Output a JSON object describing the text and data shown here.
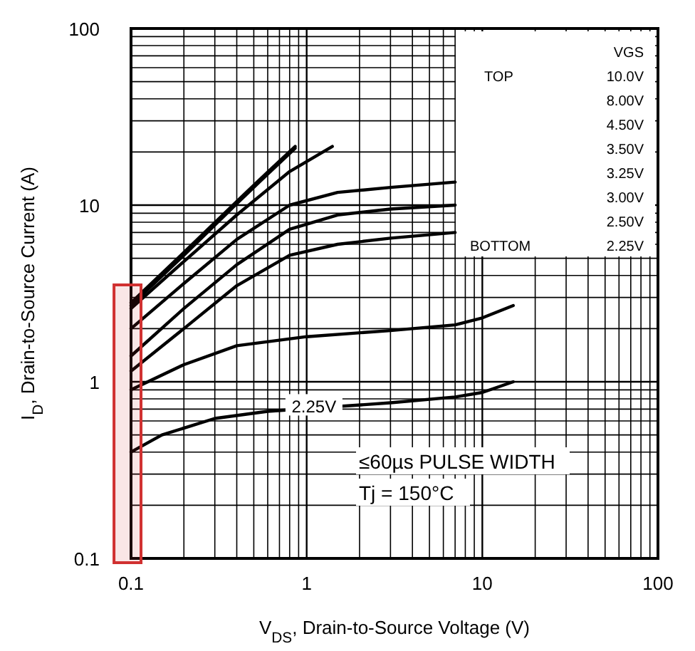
{
  "chart_data": {
    "type": "line",
    "log": "xy",
    "xlabel": "V$_{DS}$, Drain-to-Source Voltage (V)",
    "ylabel": "I$_{D}$, Drain-to-Source Current (A)",
    "legend_title": "VGS",
    "grid": true,
    "marker": "none",
    "line_style": "solid",
    "xlim": [
      0.1,
      100
    ],
    "ylim": [
      0.1,
      100
    ],
    "xticks": [
      0.1,
      {
        "value": 0.2,
        "label": null
      },
      {
        "value": 0.3,
        "label": null
      },
      {
        "value": 0.4,
        "label": null
      },
      {
        "value": 0.5,
        "label": null
      },
      {
        "value": 0.6,
        "label": null
      },
      {
        "value": 0.7,
        "label": null
      },
      {
        "value": 0.8,
        "label": null
      },
      {
        "value": 0.9,
        "label": null
      },
      1,
      {
        "value": 2,
        "label": null
      },
      {
        "value": 3,
        "label": null
      },
      {
        "value": 4,
        "label": null
      },
      {
        "value": 5,
        "label": null
      },
      {
        "value": 6,
        "label": null
      },
      {
        "value": 7,
        "label": null
      },
      {
        "value": 8,
        "label": null
      },
      {
        "value": 9,
        "label": null
      },
      10,
      {
        "value": 20,
        "label": null
      },
      {
        "value": 30,
        "label": null
      },
      {
        "value": 40,
        "label": null
      },
      {
        "value": 50,
        "label": null
      },
      {
        "value": 60,
        "label": null
      },
      {
        "value": 70,
        "label": null
      },
      {
        "value": 80,
        "label": null
      },
      {
        "value": 90,
        "label": null
      },
      100
    ],
    "yticks": [
      0.1,
      {
        "value": 0.2,
        "label": null
      },
      {
        "value": 0.3,
        "label": null
      },
      {
        "value": 0.4,
        "label": null
      },
      {
        "value": 0.5,
        "label": null
      },
      {
        "value": 0.6,
        "label": null
      },
      {
        "value": 0.7,
        "label": null
      },
      {
        "value": 0.8,
        "label": null
      },
      {
        "value": 0.9,
        "label": null
      },
      1,
      {
        "value": 2,
        "label": null
      },
      {
        "value": 3,
        "label": null
      },
      {
        "value": 4,
        "label": null
      },
      {
        "value": 5,
        "label": null
      },
      {
        "value": 6,
        "label": null
      },
      {
        "value": 7,
        "label": null
      },
      {
        "value": 8,
        "label": null
      },
      {
        "value": 9,
        "label": null
      },
      10,
      {
        "value": 20,
        "label": null
      },
      {
        "value": 30,
        "label": null
      },
      {
        "value": 40,
        "label": null
      },
      {
        "value": 50,
        "label": null
      },
      {
        "value": 60,
        "label": null
      },
      {
        "value": 70,
        "label": null
      },
      {
        "value": 80,
        "label": null
      },
      {
        "value": 90,
        "label": null
      },
      100
    ],
    "series": [
      {
        "color": "#000000",
        "x": [
          0.1,
          0.2,
          0.4,
          0.6,
          0.86
        ],
        "values": [
          2.8,
          5.4,
          10.5,
          15.4,
          21.5
        ]
      },
      {
        "color": "#000000",
        "x": [
          0.1,
          0.2,
          0.4,
          0.6,
          0.86
        ],
        "values": [
          2.7,
          5.2,
          10.2,
          15,
          21
        ]
      },
      {
        "color": "#000000",
        "x": [
          0.1,
          0.2,
          0.4,
          0.8,
          1.4
        ],
        "values": [
          2.6,
          4.8,
          8.8,
          15.5,
          21.5
        ]
      },
      {
        "color": "#000000",
        "x": [
          0.1,
          0.2,
          0.4,
          0.8,
          1.5,
          3,
          7
        ],
        "values": [
          2,
          3.6,
          6.4,
          10,
          11.8,
          12.6,
          13.5
        ]
      },
      {
        "color": "#000000",
        "x": [
          0.1,
          0.2,
          0.4,
          0.8,
          1.5,
          3,
          7
        ],
        "values": [
          1.4,
          2.6,
          4.6,
          7.3,
          8.8,
          9.5,
          10
        ]
      },
      {
        "color": "#000000",
        "x": [
          0.1,
          0.2,
          0.4,
          0.8,
          1.5,
          3,
          7
        ],
        "values": [
          1.15,
          2,
          3.5,
          5.2,
          6,
          6.5,
          7
        ]
      },
      {
        "color": "#000000",
        "x": [
          0.1,
          0.2,
          0.4,
          1,
          3,
          7,
          10,
          15
        ],
        "values": [
          0.9,
          1.25,
          1.6,
          1.8,
          1.95,
          2.1,
          2.3,
          2.7
        ]
      },
      {
        "color": "#000000",
        "x": [
          0.1,
          0.15,
          0.3,
          0.6,
          3,
          7,
          10,
          15
        ],
        "values": [
          0.4,
          0.5,
          0.62,
          0.68,
          0.76,
          0.82,
          0.87,
          1
        ]
      }
    ],
    "bands": [
      {
        "axis": "x",
        "from": 0.08,
        "to": 0.114,
        "color": "#d03030"
      }
    ],
    "annotations": [
      {
        "text": "2.25V",
        "x": 1.1,
        "y": 0.72
      },
      "TOP",
      "10.0V",
      "8.00V",
      "4.50V",
      "3.50V",
      "3.25V",
      "3.00V",
      "2.50V",
      "2.25V",
      "BOTTOM",
      "≤60µs PULSE WIDTH",
      "Tj = 150°C"
    ]
  }
}
